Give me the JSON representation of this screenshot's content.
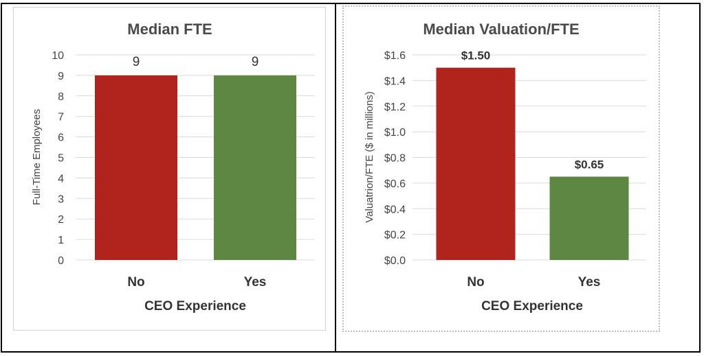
{
  "chart_data": [
    {
      "type": "bar",
      "title": "Median FTE",
      "xlabel": "CEO Experience",
      "ylabel": "Full-Time Employees",
      "categories": [
        "No",
        "Yes"
      ],
      "values": [
        9,
        9
      ],
      "data_labels": [
        "9",
        "9"
      ],
      "colors": [
        "#b0241c",
        "#5e8841"
      ],
      "ylim": [
        0,
        10
      ],
      "yticks": [
        0,
        1,
        2,
        3,
        4,
        5,
        6,
        7,
        8,
        9,
        10
      ],
      "ytick_labels": [
        "0",
        "1",
        "2",
        "3",
        "4",
        "5",
        "6",
        "7",
        "8",
        "9",
        "10"
      ],
      "grid": true,
      "legend": false
    },
    {
      "type": "bar",
      "title": "Median Valuation/FTE",
      "xlabel": "CEO Experience",
      "ylabel": "Valuatrion/FTE ($ in millions)",
      "categories": [
        "No",
        "Yes"
      ],
      "values": [
        1.5,
        0.65
      ],
      "data_labels": [
        "$1.50",
        "$0.65"
      ],
      "colors": [
        "#b0241c",
        "#5e8841"
      ],
      "ylim": [
        0,
        1.6
      ],
      "yticks": [
        0,
        0.2,
        0.4,
        0.6,
        0.8,
        1.0,
        1.2,
        1.4,
        1.6
      ],
      "ytick_labels": [
        "$0.0",
        "$0.2",
        "$0.4",
        "$0.6",
        "$0.8",
        "$1.0",
        "$1.2",
        "$1.4",
        "$1.6"
      ],
      "grid": true,
      "legend": false
    }
  ]
}
